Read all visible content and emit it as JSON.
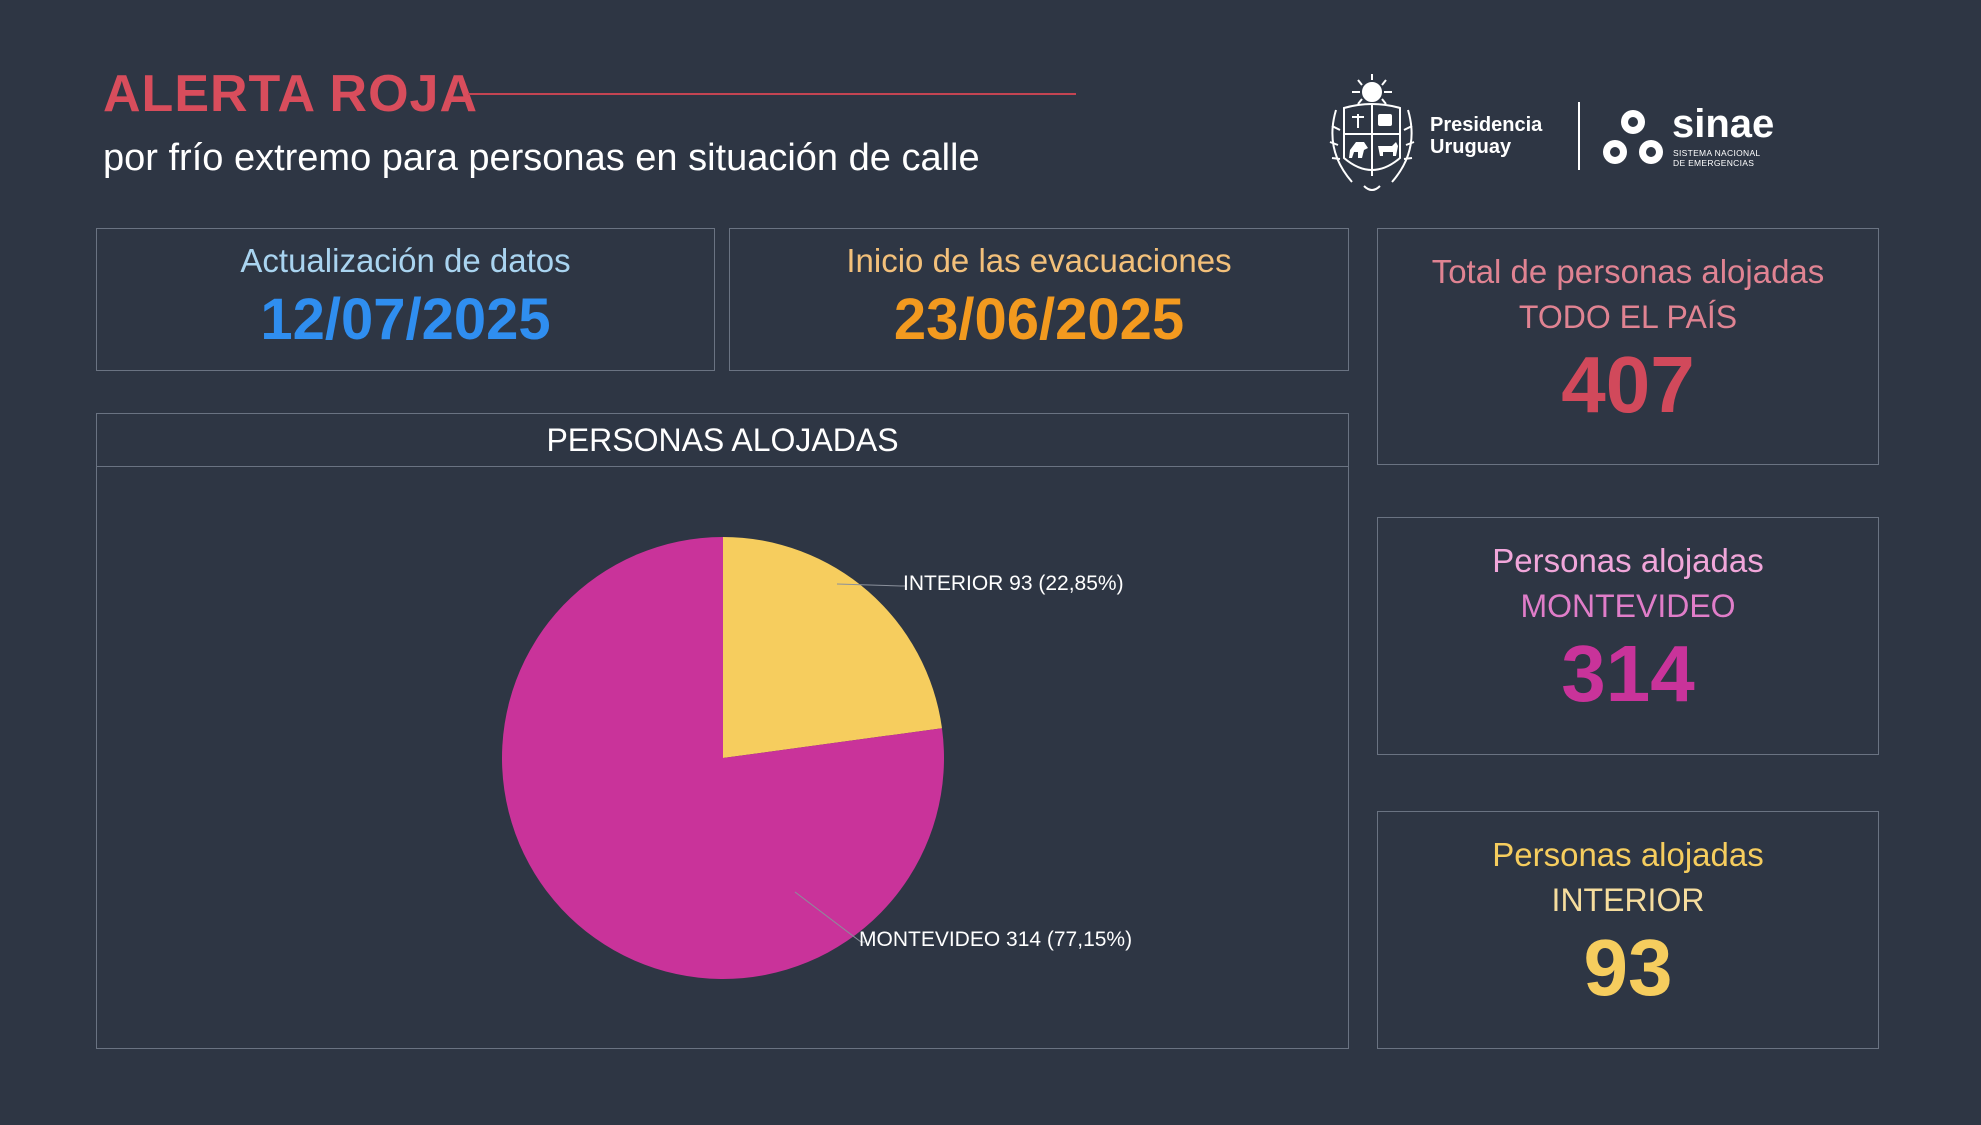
{
  "header": {
    "title": "ALERTA ROJA",
    "subtitle": "por frío extremo para personas en situación de calle"
  },
  "logos": {
    "presidencia_line1": "Presidencia",
    "presidencia_line2": "Uruguay",
    "sinae_name": "sinae",
    "sinae_sub_line1": "SISTEMA NACIONAL",
    "sinae_sub_line2": "DE EMERGENCIAS"
  },
  "update_card": {
    "label": "Actualización de datos",
    "date": "12/07/2025",
    "label_color": "#a9d4f0",
    "value_color": "#2f8ef0"
  },
  "evac_card": {
    "label": "Inicio de las evacuaciones",
    "date": "23/06/2025",
    "label_color": "#f3c07a",
    "value_color": "#f39a1f"
  },
  "total_card": {
    "label": "Total de personas alojadas",
    "sub": "TODO EL PAÍS",
    "value": "407",
    "label_color": "#e08392",
    "value_color": "#d1495b"
  },
  "montevideo_card": {
    "label": "Personas alojadas",
    "sub": "MONTEVIDEO",
    "value": "314",
    "label_color": "#f1a6da",
    "sub_color": "#e07dc9",
    "value_color": "#c9339a"
  },
  "interior_card": {
    "label": "Personas alojadas",
    "sub": "INTERIOR",
    "value": "93",
    "label_color": "#f6cd5e",
    "sub_color": "#f6dd9e",
    "value_color": "#f6cd5e"
  },
  "chart_data": {
    "type": "pie",
    "title": "PERSONAS ALOJADAS",
    "slices": [
      {
        "name": "INTERIOR",
        "value": 93,
        "percent": "22,85%",
        "label": "INTERIOR 93 (22,85%)",
        "color": "#f6cd5e"
      },
      {
        "name": "MONTEVIDEO",
        "value": 314,
        "percent": "77,15%",
        "label": "MONTEVIDEO 314 (77,15%)",
        "color": "#c9339a"
      }
    ]
  }
}
